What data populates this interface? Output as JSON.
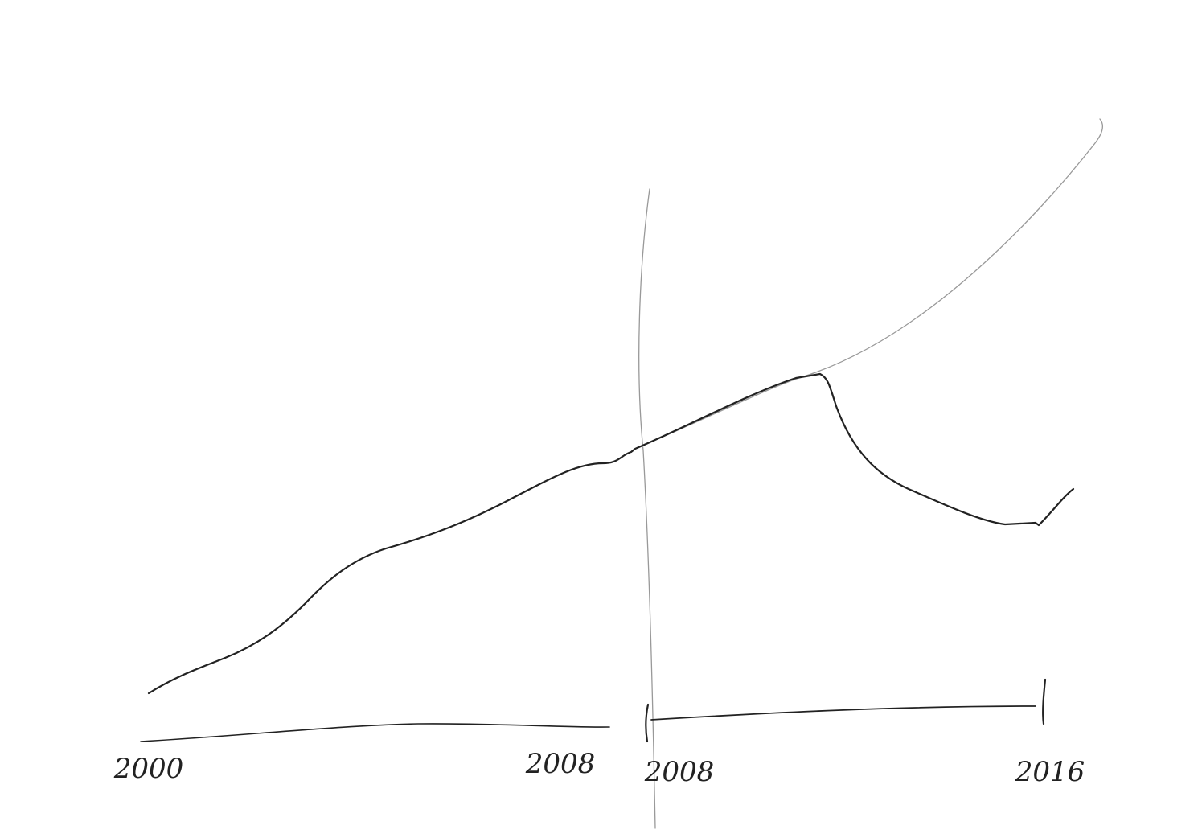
{
  "labels": [
    "2000",
    "2008",
    "2008",
    "2016"
  ]
}
